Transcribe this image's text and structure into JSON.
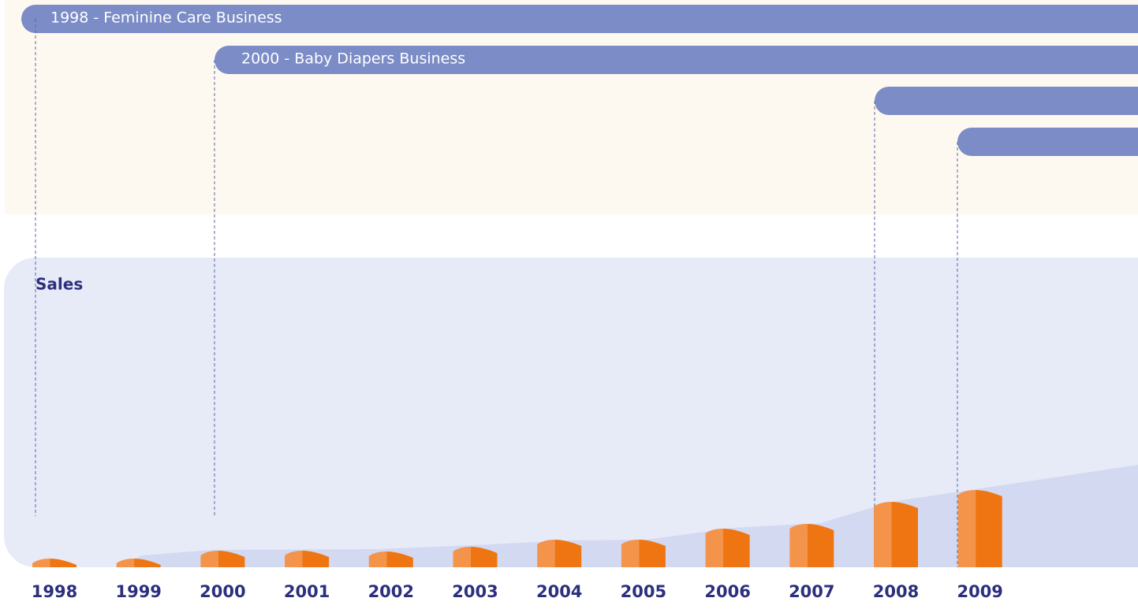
{
  "milestones": [
    "1998 - Feminine Care Business",
    "2000 - Baby Diapers Business"
  ],
  "chart_data": {
    "type": "bar",
    "title": "Sales",
    "categories": [
      "1998",
      "1999",
      "2000",
      "2001",
      "2002",
      "2003",
      "2004",
      "2005",
      "2006",
      "2007",
      "2008",
      "2009"
    ],
    "values": [
      11,
      11,
      21,
      21,
      20,
      26,
      35,
      35,
      49,
      55,
      83,
      98
    ],
    "color": "#ef7512",
    "light_color": "#f3944a"
  }
}
